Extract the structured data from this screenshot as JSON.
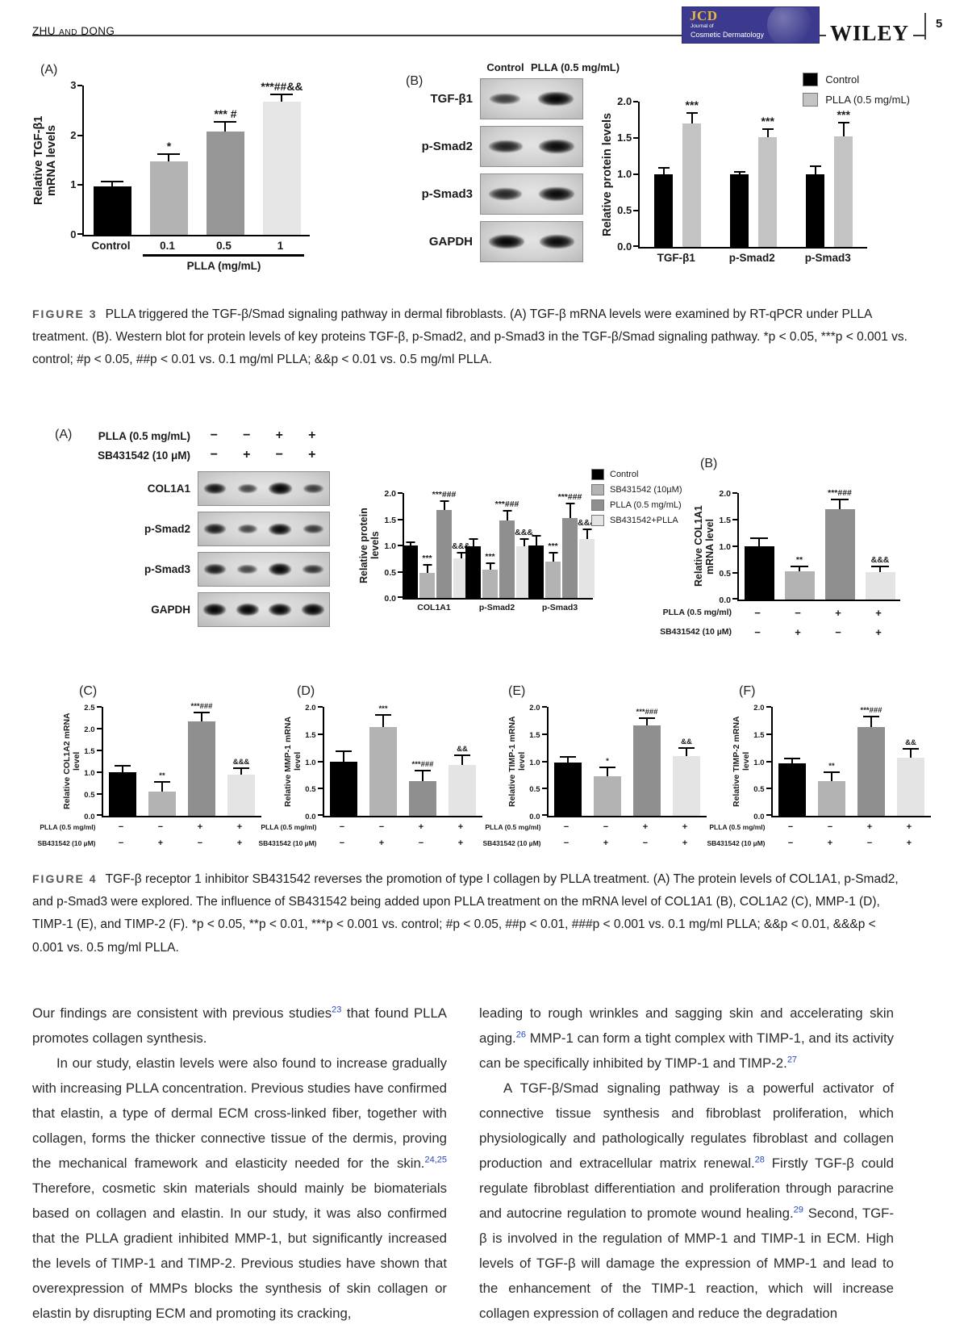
{
  "header": {
    "author1": "ZHU",
    "and_word": "AND",
    "author2": "DONG",
    "page_number": "5",
    "publisher": "WILEY",
    "logo": {
      "acronym": "JCD",
      "sub1": "Journal of",
      "sub2": "Cosmetic Dermatology",
      "bg_color": "#3c3a8e",
      "accent_color": "#e9b83f"
    }
  },
  "figure3": {
    "caption_label": "FIGURE 3",
    "caption_text": "PLLA triggered the TGF-β/Smad signaling pathway in dermal fibroblasts. (A) TGF-β mRNA levels were examined by RT-qPCR under PLLA treatment. (B). Western blot for protein levels of key proteins TGF-β, p-Smad2, and p-Smad3 in the TGF-β/Smad signaling pathway. *p < 0.05, ***p < 0.001 vs. control; #p < 0.05, ##p < 0.01 vs. 0.1 mg/ml PLLA; &&p < 0.01 vs. 0.5 mg/ml PLLA.",
    "panelA": "(A)",
    "panelB": "(B)",
    "blot": {
      "col_headers": [
        "Control",
        "PLLA (0.5 mg/mL)"
      ],
      "rows": [
        {
          "label": "TGF-β1",
          "bands": [
            0.5,
            1.0
          ]
        },
        {
          "label": "p-Smad2",
          "bands": [
            0.75,
            0.95
          ]
        },
        {
          "label": "p-Smad3",
          "bands": [
            0.7,
            0.95
          ]
        },
        {
          "label": "GAPDH",
          "bands": [
            1.0,
            0.95
          ]
        }
      ]
    }
  },
  "figure4": {
    "caption_label": "FIGURE 4",
    "caption_text": "TGF-β receptor 1 inhibitor SB431542 reverses the promotion of type I collagen by PLLA treatment. (A) The protein levels of COL1A1, p-Smad2, and p-Smad3 were explored. The influence of SB431542 being added upon PLLA treatment on the mRNA level of COL1A1 (B), COL1A2 (C), MMP-1 (D), TIMP-1 (E), and TIMP-2 (F). *p < 0.05, **p < 0.01, ***p < 0.001 vs. control; #p < 0.05, ##p < 0.01, ###p < 0.001 vs. 0.1 mg/ml PLLA; &&p < 0.01, &&&p < 0.001 vs. 0.5 mg/ml PLLA.",
    "panelA": "(A)",
    "panelB": "(B)",
    "panelC": "(C)",
    "panelD": "(D)",
    "panelE": "(E)",
    "panelF": "(F)",
    "treatment_matrix": {
      "rows": [
        {
          "label": "PLLA (0.5 mg/mL)",
          "signs": [
            "−",
            "−",
            "+",
            "+"
          ]
        },
        {
          "label": "SB431542 (10 μM)",
          "signs": [
            "−",
            "+",
            "−",
            "+"
          ]
        }
      ]
    },
    "blot": {
      "rows": [
        {
          "label": "COL1A1",
          "bands": [
            0.85,
            0.45,
            1.0,
            0.5
          ]
        },
        {
          "label": "p-Smad2",
          "bands": [
            0.8,
            0.45,
            0.95,
            0.55
          ]
        },
        {
          "label": "p-Smad3",
          "bands": [
            0.8,
            0.45,
            1.0,
            0.6
          ]
        },
        {
          "label": "GAPDH",
          "bands": [
            1.0,
            1.0,
            1.0,
            1.0
          ]
        }
      ]
    }
  },
  "body": {
    "left": [
      {
        "indent": false,
        "segments": [
          {
            "t": "Our findings are consistent with previous studies"
          },
          {
            "sup": "23"
          },
          {
            "t": " that found PLLA promotes collagen synthesis."
          }
        ]
      },
      {
        "indent": true,
        "segments": [
          {
            "t": "In our study, elastin levels were also found to increase gradually with increasing PLLA concentration. Previous studies have confirmed that elastin, a type of dermal ECM cross-linked fiber, together with collagen, forms the thicker connective tissue of the dermis, proving the mechanical framework and elasticity needed for the skin."
          },
          {
            "sup": "24,25"
          },
          {
            "t": " Therefore, cosmetic skin materials should mainly be biomaterials based on collagen and elastin. In our study, it was also confirmed that the PLLA gradient inhibited MMP-1, but significantly increased the levels of TIMP-1 and TIMP-2. Previous studies have shown that overexpression of MMPs blocks the synthesis of skin collagen or elastin by disrupting ECM and promoting its cracking,"
          }
        ]
      }
    ],
    "right": [
      {
        "indent": false,
        "segments": [
          {
            "t": "leading to rough wrinkles and sagging skin and accelerating skin aging."
          },
          {
            "sup": "26"
          },
          {
            "t": " MMP-1 can form a tight complex with TIMP-1, and its activity can be specifically inhibited by TIMP-1 and TIMP-2."
          },
          {
            "sup": "27"
          }
        ]
      },
      {
        "indent": true,
        "segments": [
          {
            "t": "A TGF-β/Smad signaling pathway is a powerful activator of connective tissue synthesis and fibroblast proliferation, which physiologically and pathologically regulates fibroblast and collagen production and extracellular matrix renewal."
          },
          {
            "sup": "28"
          },
          {
            "t": " Firstly TGF-β could regulate fibroblast differentiation and proliferation through paracrine and autocrine regulation to promote wound healing."
          },
          {
            "sup": "29"
          },
          {
            "t": " Second, TGF-β is involved in the regulation of MMP-1 and TIMP-1 in ECM. High levels of TGF-β will damage the expression of MMP-1 and lead to the enhancement of the TIMP-1 reaction, which will increase collagen expression of collagen and reduce the degradation"
          }
        ]
      }
    ]
  },
  "chart_data": [
    {
      "id": "fig3A",
      "type": "bar",
      "figure": "3",
      "panel": "A",
      "ylabel": "Relative TGF-β1\nmRNA levels",
      "ymax": 3,
      "yticks": [
        "0",
        "1",
        "2",
        "3"
      ],
      "categories": [
        "Control",
        "0.1",
        "0.5",
        "1"
      ],
      "values": [
        0.98,
        1.47,
        2.08,
        2.67
      ],
      "errors": [
        0.08,
        0.13,
        0.17,
        0.13
      ],
      "annotations": [
        "",
        "*",
        "*** #",
        "***##&&"
      ],
      "bar_colors": [
        "#000000",
        "#b3b3b3",
        "#969696",
        "#e6e6e6"
      ],
      "x_group_label": {
        "label": "PLLA (mg/mL)",
        "start": 1,
        "end": 3
      }
    },
    {
      "id": "fig3B",
      "type": "grouped-bar",
      "figure": "3",
      "panel": "B",
      "ylabel": "Relative protein levels",
      "ymax": 2,
      "yticks": [
        "0.0",
        "0.5",
        "1.0",
        "1.5",
        "2.0"
      ],
      "categories": [
        "TGF-β1",
        "p-Smad2",
        "p-Smad3"
      ],
      "series": [
        {
          "name": "Control",
          "color": "#000000",
          "values": [
            1.0,
            1.0,
            1.0
          ],
          "errors": [
            0.08,
            0.02,
            0.1
          ],
          "annotations": [
            "",
            "",
            ""
          ]
        },
        {
          "name": "PLLA (0.5 mg/mL)",
          "color": "#c3c3c3",
          "values": [
            1.7,
            1.51,
            1.52
          ],
          "errors": [
            0.13,
            0.1,
            0.18
          ],
          "annotations": [
            "***",
            "***",
            "***"
          ]
        }
      ],
      "legend": true
    },
    {
      "id": "fig4A",
      "type": "grouped-bar",
      "figure": "4",
      "panel": "A",
      "ylabel": "Relative protein levels",
      "ymax": 2,
      "yticks": [
        "0.0",
        "0.5",
        "1.0",
        "1.5",
        "2.0"
      ],
      "categories": [
        "COL1A1",
        "p-Smad2",
        "p-Smad3"
      ],
      "series": [
        {
          "name": "Control",
          "color": "#000000",
          "values": [
            1.0,
            0.99,
            1.0
          ],
          "errors": [
            0.05,
            0.12,
            0.17
          ],
          "annotations": [
            "",
            "",
            ""
          ]
        },
        {
          "name": "SB431542 (10µM)",
          "color": "#b3b3b3",
          "values": [
            0.47,
            0.54,
            0.7
          ],
          "errors": [
            0.15,
            0.1,
            0.15
          ],
          "annotations": [
            "***",
            "***",
            "***"
          ]
        },
        {
          "name": "PLLA (0.5 mg/mL)",
          "color": "#8f8f8f",
          "values": [
            1.68,
            1.48,
            1.53
          ],
          "errors": [
            0.15,
            0.16,
            0.25
          ],
          "annotations": [
            "***###",
            "***###",
            "***###"
          ]
        },
        {
          "name": "SB431542+PLLA",
          "color": "#e4e4e4",
          "values": [
            0.76,
            0.99,
            1.12
          ],
          "errors": [
            0.08,
            0.12,
            0.18
          ],
          "annotations": [
            "&&&",
            "&&&",
            "&&&"
          ]
        }
      ],
      "legend": true
    },
    {
      "id": "fig4B",
      "type": "bar",
      "figure": "4",
      "panel": "B",
      "ylabel": "Relative COL1A1 mRNA level",
      "ymax": 2,
      "yticks": [
        "0.0",
        "0.5",
        "1.0",
        "1.5",
        "2.0"
      ],
      "values": [
        1.0,
        0.53,
        1.69,
        0.51
      ],
      "errors": [
        0.14,
        0.08,
        0.18,
        0.1
      ],
      "annotations": [
        "",
        "**",
        "***###",
        "&&&"
      ],
      "bar_colors": [
        "#000000",
        "#b3b3b3",
        "#8f8f8f",
        "#e4e4e4"
      ],
      "x_matrix": {
        "rows": [
          {
            "label": "PLLA (0.5 mg/ml)",
            "signs": [
              "−",
              "−",
              "+",
              "+"
            ]
          },
          {
            "label": "SB431542 (10 µM)",
            "signs": [
              "−",
              "+",
              "−",
              "+"
            ]
          }
        ]
      }
    },
    {
      "id": "fig4C",
      "type": "bar",
      "figure": "4",
      "panel": "C",
      "ylabel": "Relative COL1A2 mRNA level",
      "ymax": 2.5,
      "yticks": [
        "0.0",
        "0.5",
        "1.0",
        "1.5",
        "2.0",
        "2.5"
      ],
      "values": [
        1.0,
        0.56,
        2.17,
        0.94
      ],
      "errors": [
        0.13,
        0.2,
        0.19,
        0.13
      ],
      "annotations": [
        "",
        "**",
        "***###",
        "&&&"
      ],
      "bar_colors": [
        "#000000",
        "#b3b3b3",
        "#8f8f8f",
        "#e4e4e4"
      ],
      "x_matrix": {
        "rows": [
          {
            "label": "PLLA (0.5 mg/ml)",
            "signs": [
              "−",
              "−",
              "+",
              "+"
            ]
          },
          {
            "label": "SB431542 (10 µM)",
            "signs": [
              "−",
              "+",
              "−",
              "+"
            ]
          }
        ]
      }
    },
    {
      "id": "fig4D",
      "type": "bar",
      "figure": "4",
      "panel": "D",
      "ylabel": "Relative MMP-1 mRNA level",
      "ymax": 2,
      "yticks": [
        "0.0",
        "0.5",
        "1.0",
        "1.5",
        "2.0"
      ],
      "values": [
        1.0,
        1.63,
        0.63,
        0.94
      ],
      "errors": [
        0.17,
        0.2,
        0.18,
        0.15
      ],
      "annotations": [
        "",
        "***",
        "***###",
        "&&"
      ],
      "bar_colors": [
        "#000000",
        "#b3b3b3",
        "#8f8f8f",
        "#e4e4e4"
      ],
      "x_matrix": {
        "rows": [
          {
            "label": "PLLA (0.5 mg/ml)",
            "signs": [
              "−",
              "−",
              "+",
              "+"
            ]
          },
          {
            "label": "SB431542 (10 µM)",
            "signs": [
              "−",
              "+",
              "−",
              "+"
            ]
          }
        ]
      }
    },
    {
      "id": "fig4E",
      "type": "bar",
      "figure": "4",
      "panel": "E",
      "ylabel": "Relative TIMP-1 mRNA level",
      "ymax": 2,
      "yticks": [
        "0.0",
        "0.5",
        "1.0",
        "1.5",
        "2.0"
      ],
      "values": [
        0.98,
        0.73,
        1.66,
        1.1
      ],
      "errors": [
        0.08,
        0.15,
        0.12,
        0.13
      ],
      "annotations": [
        "",
        "*",
        "***###",
        "&&"
      ],
      "bar_colors": [
        "#000000",
        "#b3b3b3",
        "#8f8f8f",
        "#e4e4e4"
      ],
      "x_matrix": {
        "rows": [
          {
            "label": "PLLA (0.5 mg/ml)",
            "signs": [
              "−",
              "−",
              "+",
              "+"
            ]
          },
          {
            "label": "SB431542 (10 µM)",
            "signs": [
              "−",
              "+",
              "−",
              "+"
            ]
          }
        ]
      }
    },
    {
      "id": "fig4F",
      "type": "bar",
      "figure": "4",
      "panel": "F",
      "ylabel": "Relative TIMP-2 mRNA level",
      "ymax": 2,
      "yticks": [
        "0.0",
        "0.5",
        "1.0",
        "1.5",
        "2.0"
      ],
      "values": [
        0.96,
        0.63,
        1.63,
        1.06
      ],
      "errors": [
        0.07,
        0.15,
        0.18,
        0.15
      ],
      "annotations": [
        "",
        "**",
        "***###",
        "&&"
      ],
      "bar_colors": [
        "#000000",
        "#b3b3b3",
        "#8f8f8f",
        "#e4e4e4"
      ],
      "x_matrix": {
        "rows": [
          {
            "label": "PLLA (0.5 mg/ml)",
            "signs": [
              "−",
              "−",
              "+",
              "+"
            ]
          },
          {
            "label": "SB431542 (10 µM)",
            "signs": [
              "−",
              "+",
              "−",
              "+"
            ]
          }
        ]
      }
    }
  ]
}
